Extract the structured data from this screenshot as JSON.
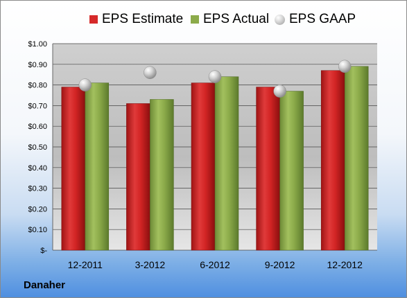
{
  "company": "Danaher",
  "colors": {
    "estimate": "#d62a2a",
    "actual": "#8cab4a",
    "gaap": "#bdbdbd",
    "plot_background": "#c8c8c8",
    "grid": "#444444"
  },
  "chart_data": {
    "type": "bar",
    "title": "",
    "xlabel": "",
    "ylabel": "",
    "categories": [
      "12-2011",
      "3-2012",
      "6-2012",
      "9-2012",
      "12-2012"
    ],
    "series": [
      {
        "name": "EPS Estimate",
        "type": "bar",
        "values": [
          0.79,
          0.71,
          0.81,
          0.79,
          0.87
        ]
      },
      {
        "name": "EPS Actual",
        "type": "bar",
        "values": [
          0.81,
          0.73,
          0.84,
          0.77,
          0.89
        ]
      },
      {
        "name": "EPS GAAP",
        "type": "scatter",
        "values": [
          0.8,
          0.86,
          0.84,
          0.77,
          0.89
        ]
      }
    ],
    "ylim": [
      0,
      1.0
    ],
    "yticks": [
      0,
      0.1,
      0.2,
      0.3,
      0.4,
      0.5,
      0.6,
      0.7,
      0.8,
      0.9,
      1.0
    ],
    "ytick_labels": [
      "$-",
      "$0.10",
      "$0.20",
      "$0.30",
      "$0.40",
      "$0.50",
      "$0.60",
      "$0.70",
      "$0.80",
      "$0.90",
      "$1.00"
    ],
    "grid": true,
    "legend": "top"
  }
}
